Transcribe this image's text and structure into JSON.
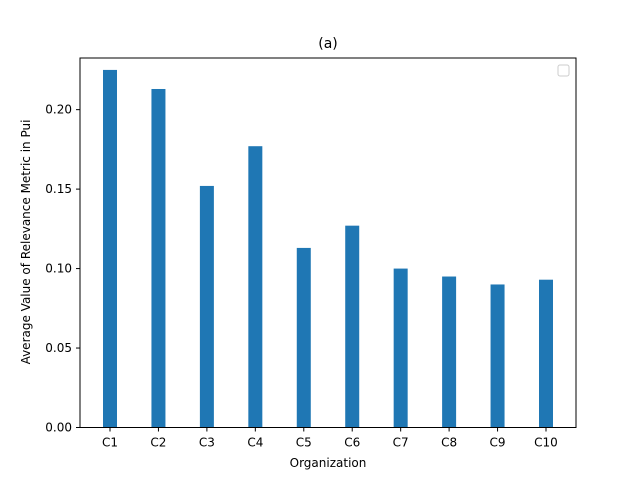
{
  "chart_data": {
    "type": "bar",
    "title": "(a)",
    "xlabel": "Organization",
    "ylabel": "Average Value of Relevance Metric in Pui",
    "categories": [
      "C1",
      "C2",
      "C3",
      "C4",
      "C5",
      "C6",
      "C7",
      "C8",
      "C9",
      "C10"
    ],
    "values": [
      0.225,
      0.213,
      0.152,
      0.177,
      0.113,
      0.127,
      0.1,
      0.095,
      0.09,
      0.093
    ],
    "ylim": [
      0,
      0.2325
    ],
    "yticks": [
      0.0,
      0.05,
      0.1,
      0.15,
      0.2
    ],
    "ytick_labels": [
      "0.00",
      "0.05",
      "0.10",
      "0.15",
      "0.20"
    ],
    "bar_color": "#1f77b4",
    "grid": false,
    "legend": {
      "placement": "top-right",
      "entries": []
    }
  }
}
